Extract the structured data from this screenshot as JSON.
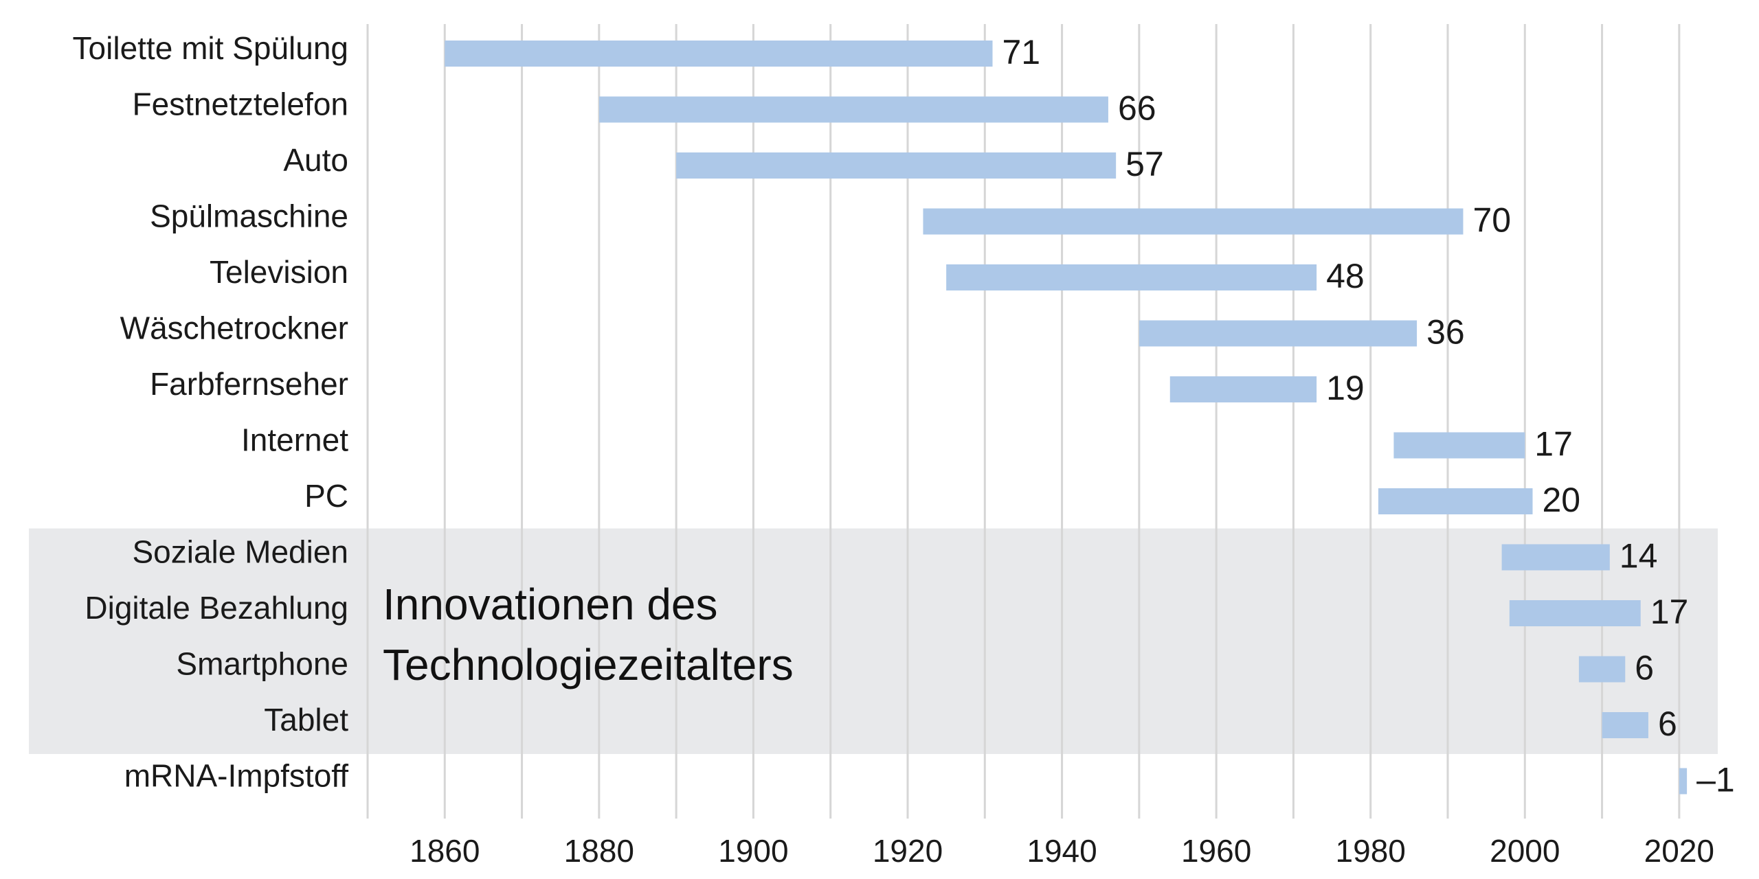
{
  "chart_data": {
    "type": "bar",
    "orientation": "horizontal-range",
    "xlim": [
      1850,
      2025
    ],
    "xticks": [
      1860,
      1880,
      1900,
      1920,
      1940,
      1960,
      1980,
      2000,
      2020
    ],
    "grid_step": 10,
    "grid": true,
    "bar_color": "#adc8e8",
    "band_color": "#e8e9eb",
    "band_title": [
      "Innovationen des",
      "Technologiezeitalters"
    ],
    "band_range": [
      9,
      12
    ],
    "items": [
      {
        "label": "Toilette mit Spülung",
        "start": 1860,
        "end": 1931,
        "value": "71"
      },
      {
        "label": "Festnetztelefon",
        "start": 1880,
        "end": 1946,
        "value": "66"
      },
      {
        "label": "Auto",
        "start": 1890,
        "end": 1947,
        "value": "57"
      },
      {
        "label": "Spülmaschine",
        "start": 1922,
        "end": 1992,
        "value": "70"
      },
      {
        "label": "Television",
        "start": 1925,
        "end": 1973,
        "value": "48"
      },
      {
        "label": "Wäschetrockner",
        "start": 1950,
        "end": 1986,
        "value": "36"
      },
      {
        "label": "Farbfernseher",
        "start": 1954,
        "end": 1973,
        "value": "19"
      },
      {
        "label": "Internet",
        "start": 1983,
        "end": 2000,
        "value": "17"
      },
      {
        "label": "PC",
        "start": 1981,
        "end": 2001,
        "value": "20"
      },
      {
        "label": "Soziale Medien",
        "start": 1997,
        "end": 2011,
        "value": "14"
      },
      {
        "label": "Digitale Bezahlung",
        "start": 1998,
        "end": 2015,
        "value": "17"
      },
      {
        "label": "Smartphone",
        "start": 2007,
        "end": 2013,
        "value": "6"
      },
      {
        "label": "Tablet",
        "start": 2010,
        "end": 2016,
        "value": "6"
      },
      {
        "label": "mRNA-Impfstoff",
        "start": 2020,
        "end": 2021,
        "value": "–1"
      }
    ]
  }
}
